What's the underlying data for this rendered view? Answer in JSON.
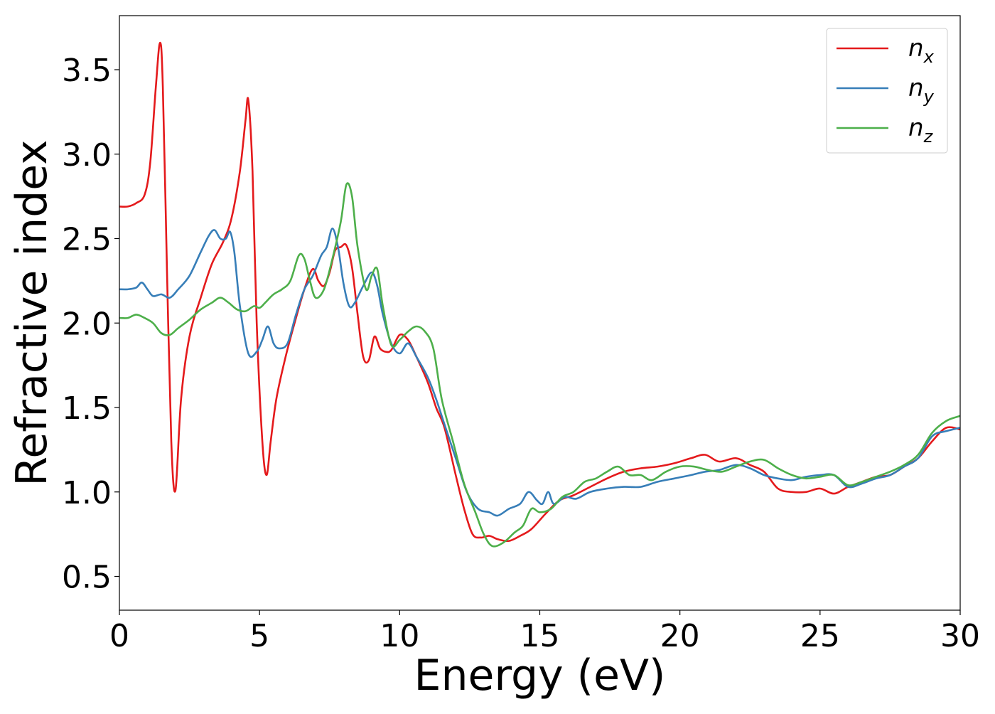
{
  "chart_data": {
    "type": "line",
    "title": "",
    "xlabel": "Energy (eV)",
    "ylabel": "Refractive index",
    "xlim": [
      0,
      30
    ],
    "ylim": [
      0.3,
      3.82
    ],
    "xticks": [
      0,
      5,
      10,
      15,
      20,
      25,
      30
    ],
    "xtick_labels": [
      "0",
      "5",
      "10",
      "15",
      "20",
      "25",
      "30"
    ],
    "yticks": [
      0.5,
      1.0,
      1.5,
      2.0,
      2.5,
      3.0,
      3.5
    ],
    "ytick_labels": [
      "0.5",
      "1.0",
      "1.5",
      "2.0",
      "2.5",
      "3.0",
      "3.5"
    ],
    "grid": false,
    "legend_position": "top-right",
    "series": [
      {
        "name": "n",
        "subscript": "x",
        "color": "#e41a1c",
        "x": [
          0,
          0.3,
          0.6,
          0.9,
          1.1,
          1.3,
          1.45,
          1.55,
          1.7,
          1.85,
          2.0,
          2.2,
          2.5,
          2.9,
          3.3,
          3.7,
          4.0,
          4.3,
          4.5,
          4.6,
          4.75,
          4.9,
          5.1,
          5.25,
          5.4,
          5.6,
          5.9,
          6.2,
          6.6,
          6.9,
          7.1,
          7.3,
          7.5,
          7.7,
          7.9,
          8.1,
          8.3,
          8.5,
          8.7,
          8.9,
          9.1,
          9.3,
          9.5,
          9.7,
          10.0,
          10.3,
          10.6,
          11.0,
          11.3,
          11.6,
          12.0,
          12.3,
          12.6,
          12.9,
          13.2,
          13.5,
          13.9,
          14.3,
          14.7,
          15.2,
          15.7,
          16.2,
          16.8,
          17.4,
          18.0,
          18.6,
          19.2,
          19.8,
          20.4,
          20.9,
          21.4,
          22.0,
          22.5,
          23.0,
          23.5,
          24.0,
          24.5,
          25.0,
          25.5,
          26.0,
          26.5,
          27.0,
          27.5,
          28.0,
          28.5,
          29.0,
          29.5,
          30.0
        ],
        "y": [
          2.69,
          2.69,
          2.71,
          2.76,
          2.95,
          3.4,
          3.66,
          3.4,
          2.3,
          1.3,
          1.01,
          1.55,
          1.92,
          2.15,
          2.35,
          2.48,
          2.62,
          2.9,
          3.2,
          3.32,
          2.9,
          2.0,
          1.3,
          1.1,
          1.3,
          1.55,
          1.78,
          1.97,
          2.2,
          2.32,
          2.25,
          2.22,
          2.3,
          2.43,
          2.45,
          2.46,
          2.33,
          2.05,
          1.8,
          1.78,
          1.92,
          1.85,
          1.83,
          1.84,
          1.93,
          1.9,
          1.8,
          1.65,
          1.5,
          1.38,
          1.1,
          0.9,
          0.75,
          0.73,
          0.74,
          0.72,
          0.71,
          0.74,
          0.78,
          0.87,
          0.95,
          0.98,
          1.03,
          1.08,
          1.12,
          1.14,
          1.15,
          1.17,
          1.2,
          1.22,
          1.18,
          1.2,
          1.16,
          1.12,
          1.02,
          1.0,
          1.0,
          1.02,
          0.99,
          1.03,
          1.06,
          1.09,
          1.1,
          1.15,
          1.2,
          1.3,
          1.38,
          1.37
        ]
      },
      {
        "name": "n",
        "subscript": "y",
        "color": "#377eb8",
        "x": [
          0,
          0.3,
          0.6,
          0.8,
          1.0,
          1.2,
          1.5,
          1.8,
          2.1,
          2.5,
          2.9,
          3.2,
          3.4,
          3.6,
          3.8,
          3.95,
          4.1,
          4.3,
          4.6,
          4.9,
          5.1,
          5.3,
          5.5,
          5.7,
          6.0,
          6.3,
          6.6,
          6.9,
          7.2,
          7.4,
          7.6,
          7.8,
          8.0,
          8.2,
          8.4,
          8.7,
          9.0,
          9.2,
          9.4,
          9.7,
          10.0,
          10.3,
          10.6,
          11.0,
          11.3,
          11.6,
          12.0,
          12.4,
          12.8,
          13.2,
          13.5,
          13.9,
          14.3,
          14.6,
          14.9,
          15.1,
          15.3,
          15.5,
          15.9,
          16.3,
          16.8,
          17.4,
          18.0,
          18.6,
          19.2,
          19.8,
          20.4,
          20.9,
          21.4,
          22.0,
          22.5,
          23.0,
          23.5,
          24.0,
          24.5,
          25.0,
          25.5,
          26.0,
          26.5,
          27.0,
          27.5,
          28.0,
          28.5,
          29.0,
          29.5,
          30.0
        ],
        "y": [
          2.2,
          2.2,
          2.21,
          2.24,
          2.2,
          2.16,
          2.17,
          2.15,
          2.2,
          2.28,
          2.42,
          2.52,
          2.55,
          2.5,
          2.5,
          2.54,
          2.42,
          2.1,
          1.82,
          1.83,
          1.9,
          1.98,
          1.88,
          1.85,
          1.88,
          2.05,
          2.2,
          2.28,
          2.4,
          2.45,
          2.56,
          2.45,
          2.23,
          2.1,
          2.12,
          2.22,
          2.3,
          2.22,
          2.05,
          1.88,
          1.82,
          1.88,
          1.8,
          1.68,
          1.55,
          1.4,
          1.2,
          1.0,
          0.9,
          0.88,
          0.86,
          0.9,
          0.93,
          1.0,
          0.95,
          0.93,
          1.0,
          0.93,
          0.97,
          0.96,
          1.0,
          1.02,
          1.03,
          1.03,
          1.06,
          1.08,
          1.1,
          1.12,
          1.13,
          1.16,
          1.14,
          1.1,
          1.08,
          1.07,
          1.09,
          1.1,
          1.1,
          1.03,
          1.05,
          1.08,
          1.1,
          1.15,
          1.2,
          1.33,
          1.36,
          1.38
        ]
      },
      {
        "name": "n",
        "subscript": "z",
        "color": "#4daf4a",
        "x": [
          0,
          0.3,
          0.6,
          0.9,
          1.2,
          1.5,
          1.8,
          2.1,
          2.5,
          2.9,
          3.3,
          3.6,
          3.9,
          4.2,
          4.5,
          4.8,
          5.0,
          5.2,
          5.5,
          5.8,
          6.1,
          6.4,
          6.6,
          6.8,
          7.0,
          7.3,
          7.6,
          7.9,
          8.1,
          8.3,
          8.5,
          8.8,
          9.0,
          9.2,
          9.4,
          9.7,
          10.0,
          10.3,
          10.6,
          10.9,
          11.2,
          11.5,
          11.9,
          12.3,
          12.7,
          13.0,
          13.3,
          13.7,
          14.1,
          14.4,
          14.7,
          15.0,
          15.4,
          15.8,
          16.2,
          16.6,
          17.0,
          17.4,
          17.8,
          18.2,
          18.6,
          19.0,
          19.5,
          20.0,
          20.5,
          21.0,
          21.5,
          22.0,
          22.5,
          23.0,
          23.5,
          24.0,
          24.5,
          25.0,
          25.5,
          26.0,
          26.5,
          27.0,
          27.5,
          28.0,
          28.5,
          29.0,
          29.5,
          30.0
        ],
        "y": [
          2.03,
          2.03,
          2.05,
          2.03,
          2.0,
          1.94,
          1.93,
          1.97,
          2.02,
          2.08,
          2.12,
          2.15,
          2.12,
          2.08,
          2.07,
          2.1,
          2.09,
          2.12,
          2.17,
          2.2,
          2.25,
          2.4,
          2.38,
          2.25,
          2.15,
          2.2,
          2.38,
          2.6,
          2.82,
          2.75,
          2.45,
          2.2,
          2.28,
          2.32,
          2.1,
          1.87,
          1.9,
          1.95,
          1.98,
          1.95,
          1.85,
          1.55,
          1.3,
          1.05,
          0.88,
          0.75,
          0.68,
          0.7,
          0.76,
          0.8,
          0.9,
          0.88,
          0.9,
          0.97,
          1.0,
          1.06,
          1.08,
          1.12,
          1.15,
          1.1,
          1.1,
          1.07,
          1.12,
          1.15,
          1.15,
          1.13,
          1.12,
          1.15,
          1.18,
          1.19,
          1.14,
          1.1,
          1.08,
          1.09,
          1.1,
          1.04,
          1.06,
          1.09,
          1.12,
          1.16,
          1.22,
          1.35,
          1.42,
          1.45
        ]
      }
    ]
  }
}
